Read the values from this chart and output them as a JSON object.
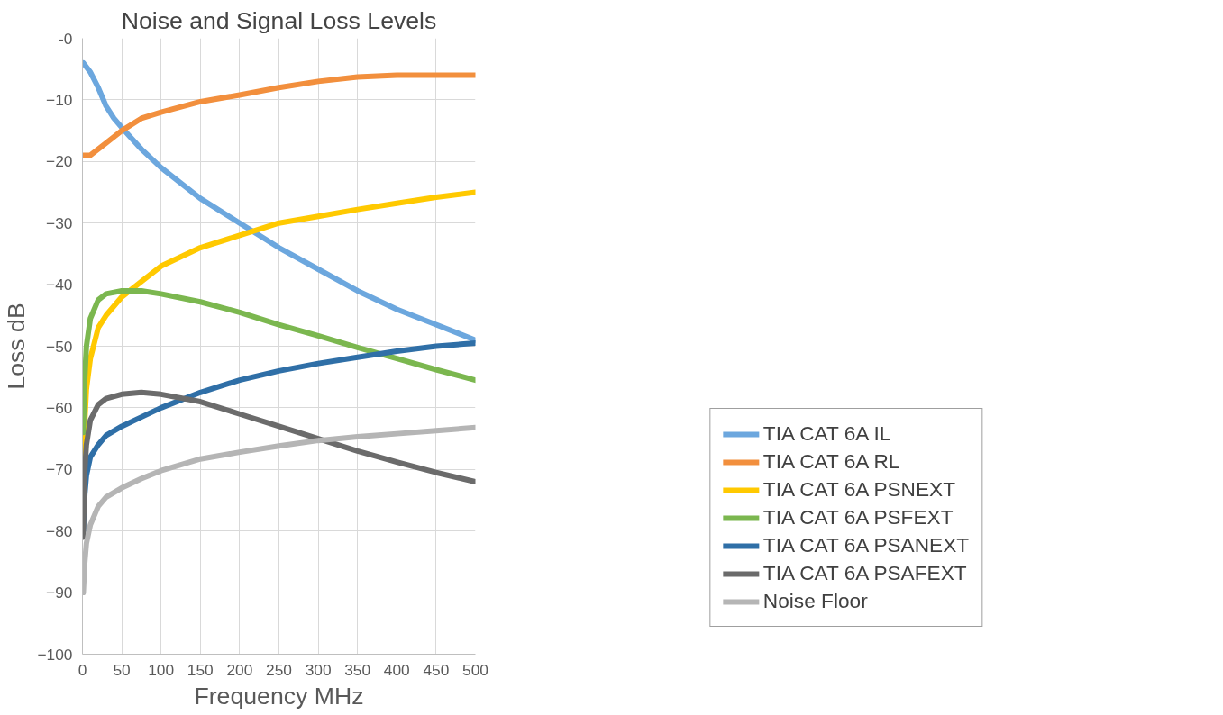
{
  "chart_data": {
    "type": "line",
    "title": "Noise and Signal Loss Levels",
    "xlabel": "Frequency MHz",
    "ylabel": "Loss dB",
    "xlim": [
      0,
      500
    ],
    "xticks": [
      0,
      50,
      100,
      150,
      200,
      250,
      300,
      350,
      400,
      450,
      500
    ],
    "ylim": [
      -100,
      0
    ],
    "yticks": [
      {
        "value": 0,
        "label": "-0"
      },
      -10,
      -20,
      -30,
      -40,
      -50,
      -60,
      -70,
      -80,
      -90,
      -100
    ],
    "grid": true,
    "legend": "right",
    "marker": "none",
    "line_style": "solid",
    "series": [
      {
        "name": "TIA CAT 6A IL",
        "color": "#6ca7de",
        "x": [
          1,
          10,
          20,
          30,
          40,
          50,
          75,
          100,
          150,
          200,
          250,
          300,
          350,
          400,
          450,
          500
        ],
        "values": [
          -4,
          -5.5,
          -8,
          -11,
          -13,
          -14.5,
          -18,
          -21,
          -26,
          -30,
          -34,
          -37.5,
          -41,
          -44,
          -46.5,
          -49
        ]
      },
      {
        "name": "TIA CAT 6A RL",
        "color": "#f28f3d",
        "x": [
          1,
          10,
          20,
          30,
          50,
          75,
          100,
          150,
          200,
          250,
          300,
          350,
          400,
          450,
          500
        ],
        "values": [
          -19,
          -19,
          -18,
          -17,
          -15,
          -13,
          -12,
          -10.3,
          -9.2,
          -8,
          -7,
          -6.3,
          -6,
          -6,
          -6
        ]
      },
      {
        "name": "TIA CAT 6A PSNEXT",
        "color": "#ffc900",
        "x": [
          1,
          3,
          5,
          10,
          20,
          30,
          50,
          75,
          100,
          150,
          200,
          250,
          300,
          350,
          400,
          450,
          500
        ],
        "values": [
          -70,
          -62,
          -57,
          -52,
          -47,
          -45,
          -42,
          -39.5,
          -37,
          -34,
          -32,
          -30,
          -28.9,
          -27.8,
          -26.8,
          -25.8,
          -25
        ]
      },
      {
        "name": "TIA CAT 6A PSFEXT",
        "color": "#7bb74f",
        "x": [
          1,
          3,
          5,
          10,
          20,
          30,
          50,
          75,
          100,
          150,
          200,
          250,
          300,
          350,
          400,
          450,
          500
        ],
        "values": [
          -64,
          -55,
          -50,
          -45.5,
          -42.5,
          -41.5,
          -41,
          -41,
          -41.5,
          -42.8,
          -44.5,
          -46.5,
          -48.3,
          -50.2,
          -52,
          -53.8,
          -55.5
        ]
      },
      {
        "name": "TIA CAT 6A PSANEXT",
        "color": "#2f6fa7",
        "x": [
          1,
          3,
          5,
          10,
          20,
          30,
          50,
          75,
          100,
          150,
          200,
          250,
          300,
          350,
          400,
          450,
          500
        ],
        "values": [
          -80,
          -74,
          -71,
          -68,
          -66,
          -64.5,
          -63,
          -61.5,
          -60,
          -57.5,
          -55.5,
          -54,
          -52.8,
          -51.8,
          -50.8,
          -50,
          -49.5
        ]
      },
      {
        "name": "TIA CAT 6A PSAFEXT",
        "color": "#6b6b6b",
        "x": [
          1,
          3,
          5,
          10,
          20,
          30,
          50,
          75,
          100,
          150,
          200,
          250,
          300,
          350,
          400,
          450,
          500
        ],
        "values": [
          -81,
          -70,
          -66,
          -62,
          -59.5,
          -58.5,
          -57.8,
          -57.5,
          -57.8,
          -59,
          -61,
          -63,
          -65,
          -67,
          -68.8,
          -70.5,
          -72
        ]
      },
      {
        "name": "Noise Floor",
        "color": "#b5b5b5",
        "x": [
          1,
          3,
          5,
          10,
          20,
          30,
          50,
          75,
          100,
          150,
          200,
          250,
          300,
          350,
          400,
          450,
          500
        ],
        "values": [
          -90,
          -85,
          -82,
          -79,
          -76,
          -74.5,
          -73,
          -71.5,
          -70.2,
          -68.3,
          -67.2,
          -66.2,
          -65.3,
          -64.7,
          -64.2,
          -63.7,
          -63.2
        ]
      }
    ]
  }
}
